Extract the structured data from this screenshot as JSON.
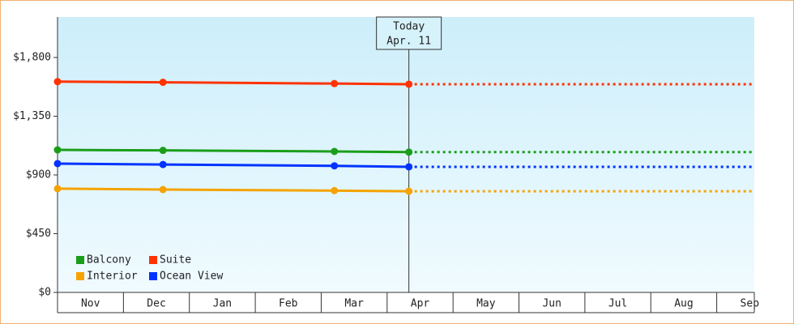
{
  "chart_data": {
    "type": "line",
    "x": [
      0,
      1.6,
      4.2,
      5.33
    ],
    "xlim": [
      0,
      10.57
    ],
    "xticks": [
      {
        "value": 0.5,
        "label": "Nov"
      },
      {
        "value": 1.5,
        "label": "Dec"
      },
      {
        "value": 2.5,
        "label": "Jan"
      },
      {
        "value": 3.5,
        "label": "Feb"
      },
      {
        "value": 4.5,
        "label": "Mar"
      },
      {
        "value": 5.5,
        "label": "Apr"
      },
      {
        "value": 6.5,
        "label": "May"
      },
      {
        "value": 7.5,
        "label": "Jun"
      },
      {
        "value": 8.5,
        "label": "Jul"
      },
      {
        "value": 9.5,
        "label": "Aug"
      },
      {
        "value": 10.5,
        "label": "Sep"
      }
    ],
    "ylim": [
      0,
      2110
    ],
    "yticks": [
      {
        "value": 0,
        "label": "$0"
      },
      {
        "value": 450,
        "label": "$450"
      },
      {
        "value": 900,
        "label": "$900"
      },
      {
        "value": 1350,
        "label": "$1,350"
      },
      {
        "value": 1800,
        "label": "$1,800"
      }
    ],
    "series": [
      {
        "name": "Balcony",
        "color": "#1a9e1a",
        "values": [
          1092,
          1088,
          1080,
          1075
        ]
      },
      {
        "name": "Suite",
        "color": "#ff3300",
        "values": [
          1615,
          1610,
          1600,
          1595
        ]
      },
      {
        "name": "Interior",
        "color": "#f5a300",
        "values": [
          795,
          788,
          780,
          775
        ]
      },
      {
        "name": "Ocean View",
        "color": "#0033ff",
        "values": [
          987,
          980,
          970,
          962
        ]
      }
    ],
    "today": {
      "label": "Today",
      "date": "Apr. 11",
      "x": 5.33
    },
    "legend": "lower left"
  }
}
